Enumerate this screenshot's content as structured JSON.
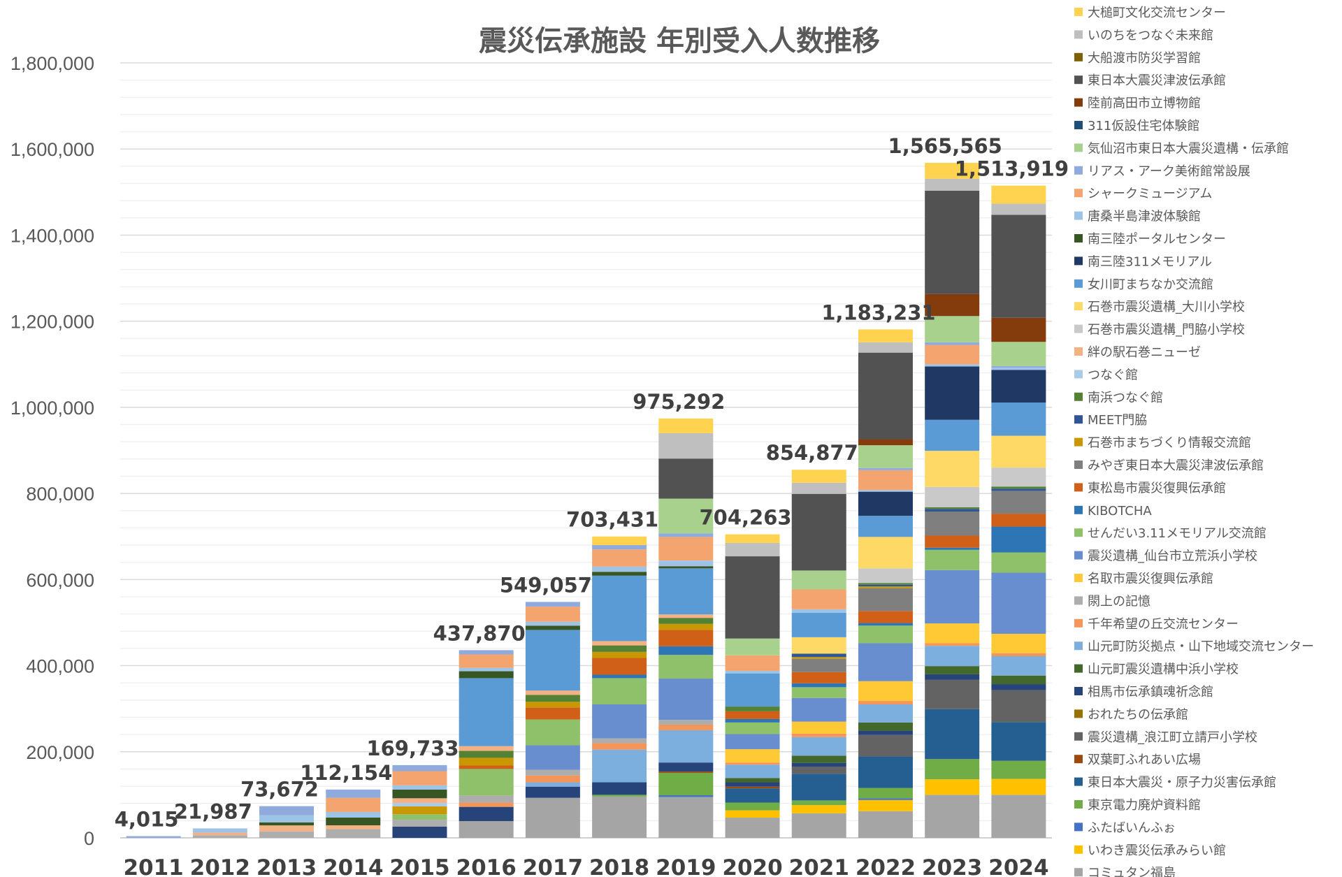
{
  "chart_data": {
    "type": "bar",
    "stacked": true,
    "title": "震災伝承施設 年別受入人数推移",
    "xlabel": "",
    "ylabel": "",
    "ylim": [
      0,
      1800000
    ],
    "yticks": [
      "0",
      "200,000",
      "400,000",
      "600,000",
      "800,000",
      "1,000,000",
      "1,200,000",
      "1,400,000",
      "1,600,000",
      "1,800,000"
    ],
    "grid": true,
    "legend_position": "right",
    "categories": [
      "2011",
      "2012",
      "2013",
      "2014",
      "2015",
      "2016",
      "2017",
      "2018",
      "2019",
      "2020",
      "2021",
      "2022",
      "2023",
      "2024"
    ],
    "total_labels": [
      "4,015",
      "21,987",
      "73,672",
      "112,154",
      "169,733",
      "437,870",
      "549,057",
      "703,431",
      "975,292",
      "704,263",
      "854,877",
      "1,183,231",
      "1,565,565",
      "1,513,919"
    ],
    "series": [
      {
        "name": "大槌町文化交流センター",
        "color": "#FFD34F",
        "values": [
          0,
          0,
          0,
          0,
          0,
          0,
          0,
          20000,
          34000,
          20000,
          30000,
          30000,
          37000,
          42000
        ]
      },
      {
        "name": "いのちをつなぐ未来館",
        "color": "#BFBFBF",
        "values": [
          0,
          0,
          0,
          0,
          0,
          0,
          0,
          0,
          59000,
          31000,
          26000,
          24000,
          28000,
          26000
        ]
      },
      {
        "name": "大船渡市防災学習館",
        "color": "#7F6000",
        "values": [
          0,
          0,
          0,
          0,
          0,
          0,
          0,
          0,
          0,
          0,
          0,
          0,
          0,
          0
        ]
      },
      {
        "name": "東日本大震災津波伝承館",
        "color": "#525252",
        "values": [
          0,
          0,
          0,
          0,
          0,
          0,
          0,
          0,
          93000,
          191000,
          178000,
          201000,
          240000,
          239000
        ]
      },
      {
        "name": "陸前高田市立博物館",
        "color": "#843C0C",
        "values": [
          0,
          0,
          0,
          0,
          0,
          0,
          0,
          0,
          0,
          0,
          0,
          14000,
          51000,
          56000
        ]
      },
      {
        "name": "311仮設住宅体験館",
        "color": "#1F4E79",
        "values": [
          0,
          0,
          0,
          0,
          0,
          0,
          0,
          0,
          0,
          0,
          0,
          0,
          0,
          0
        ]
      },
      {
        "name": "気仙沼市東日本大震災遺構・伝承館",
        "color": "#A9D18E",
        "values": [
          0,
          0,
          0,
          0,
          0,
          0,
          0,
          0,
          81000,
          39000,
          44000,
          53000,
          61000,
          56000
        ]
      },
      {
        "name": "リアス・アーク美術館常設展",
        "color": "#8FAADC",
        "values": [
          4015,
          0,
          21172,
          19000,
          14000,
          10000,
          11000,
          10000,
          8000,
          0,
          0,
          5000,
          6000,
          4000
        ]
      },
      {
        "name": "シャークミュージアム",
        "color": "#F4A46E",
        "values": [
          0,
          0,
          0,
          33000,
          33000,
          31000,
          35000,
          40000,
          55000,
          36000,
          46000,
          46000,
          45000,
          0
        ]
      },
      {
        "name": "唐桑半島津波体験館",
        "color": "#9DC3E6",
        "values": [
          0,
          9987,
          16500,
          13000,
          10000,
          8000,
          9000,
          12000,
          13000,
          6000,
          8000,
          4000,
          5000,
          5000
        ]
      },
      {
        "name": "南三陸ポータルセンター",
        "color": "#375623",
        "values": [
          0,
          0,
          7000,
          18000,
          20000,
          16000,
          10000,
          9000,
          5000,
          0,
          0,
          0,
          0,
          0
        ]
      },
      {
        "name": "南三陸311メモリアル",
        "color": "#203864",
        "values": [
          0,
          0,
          0,
          0,
          0,
          0,
          0,
          0,
          0,
          0,
          0,
          56000,
          124000,
          76000
        ]
      },
      {
        "name": "女川町まちなか交流館",
        "color": "#5B9BD5",
        "values": [
          0,
          0,
          0,
          0,
          0,
          158000,
          141000,
          152000,
          107000,
          77000,
          57000,
          49000,
          72000,
          77000
        ]
      },
      {
        "name": "石巻市震災遺構_大川小学校",
        "color": "#FFD966",
        "values": [
          0,
          0,
          0,
          0,
          0,
          0,
          0,
          0,
          0,
          0,
          38000,
          73000,
          84000,
          74000
        ]
      },
      {
        "name": "石巻市震災遺構_門脇小学校",
        "color": "#C9C9C9",
        "values": [
          0,
          0,
          0,
          0,
          0,
          0,
          0,
          0,
          0,
          0,
          0,
          34000,
          47000,
          44000
        ]
      },
      {
        "name": "絆の駅石巻ニューゼ",
        "color": "#F4B183",
        "values": [
          0,
          6000,
          14000,
          9000,
          11000,
          11000,
          10000,
          10000,
          8000,
          0,
          0,
          0,
          0,
          0
        ]
      },
      {
        "name": "つなぐ館",
        "color": "#A9CBEA",
        "values": [
          0,
          0,
          0,
          0,
          8000,
          0,
          0,
          0,
          0,
          0,
          0,
          0,
          0,
          0
        ]
      },
      {
        "name": "南浜つなぐ館",
        "color": "#548235",
        "values": [
          0,
          0,
          0,
          0,
          0,
          16000,
          16000,
          15000,
          14000,
          11000,
          0,
          4000,
          4000,
          5000
        ]
      },
      {
        "name": "MEET門脇",
        "color": "#2F5597",
        "values": [
          0,
          0,
          0,
          0,
          0,
          0,
          0,
          0,
          0,
          0,
          8000,
          4000,
          6000,
          5000
        ]
      },
      {
        "name": "石巻市まちづくり情報交流館",
        "color": "#C99700",
        "values": [
          0,
          0,
          0,
          0,
          18000,
          18000,
          13000,
          14000,
          14000,
          0,
          4000,
          4000,
          0,
          0
        ]
      },
      {
        "name": "みやぎ東日本大震災津波伝承館",
        "color": "#7F7F7F",
        "values": [
          0,
          0,
          0,
          0,
          0,
          0,
          0,
          0,
          0,
          0,
          31000,
          53000,
          56000,
          53000
        ]
      },
      {
        "name": "東松島市震災復興伝承館",
        "color": "#D06018",
        "values": [
          0,
          0,
          0,
          0,
          0,
          8000,
          28000,
          39000,
          38000,
          18000,
          26000,
          28000,
          28000,
          30000
        ]
      },
      {
        "name": "KIBOTCHA",
        "color": "#2E75B6",
        "values": [
          0,
          0,
          0,
          0,
          0,
          0,
          0,
          8000,
          20000,
          8000,
          9000,
          6000,
          5000,
          60000
        ]
      },
      {
        "name": "せんだい3.11メモリアル交流館",
        "color": "#8FC16A",
        "values": [
          0,
          0,
          0,
          0,
          13000,
          62000,
          60000,
          61000,
          55000,
          27000,
          25000,
          41000,
          47000,
          47000
        ]
      },
      {
        "name": "震災遺構_仙台市立荒浜小学校",
        "color": "#698ED0",
        "values": [
          0,
          0,
          0,
          0,
          0,
          0,
          57000,
          79000,
          96000,
          35000,
          55000,
          88000,
          124000,
          142000
        ]
      },
      {
        "name": "名取市震災復興伝承館",
        "color": "#FFC935",
        "values": [
          0,
          0,
          0,
          0,
          0,
          0,
          0,
          0,
          0,
          31000,
          28000,
          46000,
          46000,
          45000
        ]
      },
      {
        "name": "閖上の記憶",
        "color": "#ADADAD",
        "values": [
          0,
          6000,
          15000,
          20154,
          16000,
          16000,
          13000,
          11000,
          11000,
          0,
          0,
          0,
          0,
          0
        ]
      },
      {
        "name": "千年希望の丘交流センター",
        "color": "#F4965A",
        "values": [
          0,
          0,
          0,
          0,
          0,
          10000,
          16000,
          15000,
          13000,
          5000,
          8000,
          8000,
          6000,
          7000
        ]
      },
      {
        "name": "山元町防災拠点・山下地域交流センター",
        "color": "#7CAFDD",
        "values": [
          0,
          0,
          0,
          0,
          0,
          0,
          10000,
          76000,
          75000,
          31000,
          43000,
          42000,
          47000,
          45000
        ]
      },
      {
        "name": "山元町震災遺構中浜小学校",
        "color": "#43682B",
        "values": [
          0,
          0,
          0,
          0,
          0,
          0,
          0,
          0,
          0,
          10000,
          17000,
          19000,
          19000,
          20000
        ]
      },
      {
        "name": "相馬市伝承鎮魂祈念館",
        "color": "#26447A",
        "values": [
          0,
          0,
          0,
          0,
          26000,
          33000,
          26000,
          29000,
          21000,
          10000,
          9000,
          10000,
          13000,
          14000
        ]
      },
      {
        "name": "おれたちの伝承館",
        "color": "#967300",
        "values": [
          0,
          0,
          0,
          0,
          0,
          0,
          0,
          0,
          0,
          0,
          0,
          0,
          0,
          0
        ]
      },
      {
        "name": "震災遺構_浪江町立請戸小学校",
        "color": "#636363",
        "values": [
          0,
          0,
          0,
          0,
          0,
          0,
          0,
          0,
          0,
          0,
          16000,
          50000,
          68000,
          74000
        ]
      },
      {
        "name": "双葉町ふれあい広場",
        "color": "#9E480E",
        "values": [
          0,
          0,
          0,
          0,
          0,
          0,
          0,
          0,
          3000,
          4000,
          0,
          0,
          0,
          0
        ]
      },
      {
        "name": "東日本大震災・原子力災害伝承館",
        "color": "#255E91",
        "values": [
          0,
          0,
          0,
          0,
          0,
          0,
          0,
          0,
          0,
          33000,
          62000,
          73000,
          116000,
          90000
        ]
      },
      {
        "name": "東京電力廃炉資料館",
        "color": "#70AD47",
        "values": [
          0,
          0,
          0,
          0,
          0,
          0,
          0,
          4000,
          52000,
          18000,
          11000,
          24000,
          47000,
          42000
        ]
      },
      {
        "name": "ふたばいんふぉ",
        "color": "#4472C4",
        "values": [
          0,
          0,
          0,
          0,
          0,
          0,
          0,
          0,
          4000,
          0,
          0,
          4000,
          0,
          0
        ]
      },
      {
        "name": "いわき震災伝承みらい館",
        "color": "#FFC000",
        "values": [
          0,
          0,
          0,
          0,
          0,
          0,
          0,
          0,
          0,
          17000,
          19000,
          26000,
          36000,
          37000
        ]
      },
      {
        "name": "コミュタン福島",
        "color": "#A5A5A5",
        "values": [
          0,
          0,
          0,
          0,
          0,
          39000,
          93000,
          96000,
          95000,
          47000,
          57000,
          62000,
          100000,
          100000
        ]
      }
    ]
  }
}
